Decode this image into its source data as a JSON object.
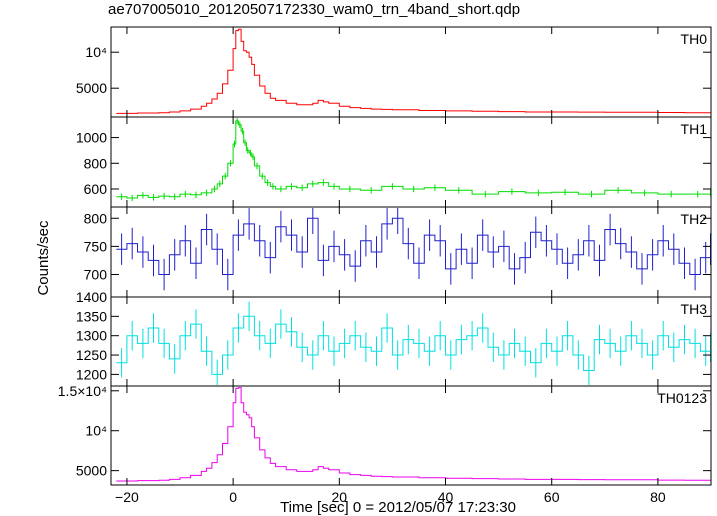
{
  "figure": {
    "title": "ae707005010_20120507172330_wam0_trn_4band_short.qdp",
    "xlabel": "Time [sec] 0 = 2012/05/07 17:23:30",
    "ylabel": "Counts/sec"
  },
  "chart_data": [
    {
      "type": "line",
      "name": "TH0",
      "color": "#ff0000",
      "xlim": [
        -23,
        90
      ],
      "ylim": [
        1000,
        13500
      ],
      "ticks": [
        {
          "v": 5000,
          "label": "5000"
        },
        {
          "v": 10000,
          "label": "10⁴"
        }
      ],
      "x": [
        -22,
        -20,
        -18,
        -16,
        -14,
        -12,
        -10,
        -8,
        -6,
        -5,
        -4,
        -3,
        -2,
        -1,
        0,
        0.5,
        1,
        1.5,
        2,
        2.5,
        3,
        3.5,
        4,
        5,
        6,
        7,
        8,
        10,
        12,
        14,
        15,
        16,
        17,
        18,
        20,
        22,
        24,
        26,
        28,
        30,
        35,
        40,
        45,
        50,
        55,
        60,
        65,
        70,
        75,
        80,
        85,
        90
      ],
      "values": [
        1500,
        1500,
        1550,
        1550,
        1600,
        1700,
        1850,
        2100,
        2500,
        2900,
        3500,
        4300,
        5600,
        7500,
        10500,
        13000,
        13200,
        11500,
        10200,
        10000,
        9300,
        8300,
        6800,
        5300,
        4300,
        3600,
        3300,
        2900,
        2700,
        2700,
        2900,
        3300,
        3100,
        2900,
        2500,
        2300,
        2200,
        2100,
        2050,
        2000,
        1900,
        1850,
        1800,
        1750,
        1700,
        1700,
        1680,
        1650,
        1650,
        1620,
        1600,
        1600
      ]
    },
    {
      "type": "line",
      "name": "TH1",
      "color": "#00dd00",
      "xlim": [
        -23,
        90
      ],
      "ylim": [
        460,
        1160
      ],
      "ticks": [
        {
          "v": 600,
          "label": "600"
        },
        {
          "v": 800,
          "label": "800"
        },
        {
          "v": 1000,
          "label": "1000"
        }
      ],
      "error": 25,
      "x": [
        -22,
        -20,
        -18,
        -16,
        -14,
        -12,
        -10,
        -8,
        -6,
        -4,
        -3,
        -2,
        -1,
        0,
        0.5,
        1,
        1.5,
        2,
        2.5,
        3,
        3.5,
        4,
        5,
        6,
        7,
        8,
        10,
        12,
        14,
        16,
        18,
        20,
        24,
        28,
        32,
        36,
        40,
        45,
        50,
        55,
        60,
        65,
        70,
        75,
        80,
        85,
        90
      ],
      "values": [
        540,
        530,
        550,
        535,
        545,
        540,
        560,
        555,
        570,
        600,
        640,
        700,
        800,
        950,
        1130,
        1100,
        1050,
        960,
        900,
        880,
        850,
        780,
        700,
        650,
        620,
        600,
        620,
        610,
        640,
        650,
        620,
        600,
        590,
        620,
        600,
        610,
        590,
        560,
        580,
        570,
        575,
        560,
        590,
        570,
        560,
        560,
        570
      ]
    },
    {
      "type": "line",
      "name": "TH2",
      "color": "#2020cc",
      "xlim": [
        -23,
        90
      ],
      "ylim": [
        660,
        820
      ],
      "ticks": [
        {
          "v": 700,
          "label": "700"
        },
        {
          "v": 750,
          "label": "750"
        },
        {
          "v": 800,
          "label": "800"
        }
      ],
      "error": 28,
      "x": [
        -22,
        -20,
        -18,
        -16,
        -14,
        -12,
        -10,
        -8,
        -6,
        -4,
        -2,
        0,
        2,
        4,
        6,
        8,
        10,
        12,
        14,
        16,
        18,
        20,
        22,
        24,
        26,
        28,
        30,
        32,
        34,
        36,
        38,
        40,
        42,
        44,
        46,
        48,
        50,
        52,
        54,
        56,
        58,
        60,
        62,
        64,
        66,
        68,
        70,
        72,
        74,
        76,
        78,
        80,
        82,
        84,
        86,
        88,
        90
      ],
      "values": [
        745,
        755,
        740,
        725,
        700,
        735,
        760,
        720,
        780,
        745,
        700,
        770,
        790,
        760,
        730,
        785,
        770,
        740,
        800,
        725,
        750,
        735,
        715,
        760,
        740,
        790,
        800,
        755,
        720,
        770,
        760,
        710,
        745,
        720,
        770,
        740,
        750,
        710,
        730,
        775,
        760,
        745,
        720,
        735,
        760,
        725,
        780,
        755,
        740,
        710,
        735,
        760,
        745,
        720,
        700,
        730,
        745
      ]
    },
    {
      "type": "line",
      "name": "TH3",
      "color": "#00e0e0",
      "xlim": [
        -23,
        90
      ],
      "ylim": [
        1170,
        1400
      ],
      "ticks": [
        {
          "v": 1200,
          "label": "1200"
        },
        {
          "v": 1250,
          "label": "1250"
        },
        {
          "v": 1300,
          "label": "1300"
        },
        {
          "v": 1350,
          "label": "1350"
        },
        {
          "v": 1400,
          "label": "1400"
        }
      ],
      "error": 38,
      "x": [
        -22,
        -20,
        -18,
        -16,
        -14,
        -12,
        -10,
        -8,
        -6,
        -4,
        -2,
        0,
        2,
        4,
        6,
        8,
        10,
        12,
        14,
        16,
        18,
        20,
        22,
        24,
        26,
        28,
        30,
        32,
        34,
        36,
        38,
        40,
        42,
        44,
        46,
        48,
        50,
        52,
        54,
        56,
        58,
        60,
        62,
        64,
        66,
        68,
        70,
        72,
        74,
        76,
        78,
        80,
        82,
        84,
        86,
        88,
        90
      ],
      "values": [
        1230,
        1300,
        1280,
        1320,
        1280,
        1240,
        1300,
        1330,
        1260,
        1200,
        1250,
        1320,
        1350,
        1300,
        1280,
        1330,
        1310,
        1270,
        1250,
        1300,
        1260,
        1280,
        1300,
        1270,
        1260,
        1320,
        1250,
        1290,
        1280,
        1260,
        1300,
        1250,
        1290,
        1300,
        1320,
        1270,
        1250,
        1280,
        1260,
        1230,
        1280,
        1260,
        1300,
        1250,
        1210,
        1290,
        1280,
        1260,
        1300,
        1280,
        1250,
        1300,
        1270,
        1290,
        1280,
        1260,
        1270
      ]
    },
    {
      "type": "line",
      "name": "TH0123",
      "color": "#ee00ee",
      "xlim": [
        -23,
        90
      ],
      "ylim": [
        3200,
        15600
      ],
      "ticks": [
        {
          "v": 5000,
          "label": "5000"
        },
        {
          "v": 10000,
          "label": "10⁴"
        },
        {
          "v": 15000,
          "label": "1.5×10⁴"
        }
      ],
      "x": [
        -22,
        -20,
        -18,
        -16,
        -14,
        -12,
        -10,
        -8,
        -6,
        -5,
        -4,
        -3,
        -2,
        -1,
        0,
        0.5,
        1,
        1.5,
        2,
        2.5,
        3,
        3.5,
        4,
        5,
        6,
        7,
        8,
        10,
        12,
        14,
        15,
        16,
        17,
        18,
        20,
        22,
        24,
        26,
        28,
        30,
        35,
        40,
        45,
        50,
        55,
        60,
        65,
        70,
        75,
        80,
        85,
        90
      ],
      "values": [
        3700,
        3700,
        3750,
        3750,
        3800,
        3900,
        4100,
        4400,
        4900,
        5300,
        6000,
        7000,
        8400,
        10500,
        13500,
        15300,
        15400,
        13500,
        12300,
        12000,
        11600,
        10500,
        9100,
        7600,
        6600,
        5900,
        5500,
        5100,
        4900,
        4900,
        5100,
        5500,
        5300,
        5100,
        4700,
        4500,
        4400,
        4300,
        4250,
        4200,
        4100,
        4050,
        4000,
        3950,
        3900,
        3900,
        3880,
        3850,
        3850,
        3820,
        3800,
        3800
      ]
    }
  ],
  "x_axis": {
    "ticks": [
      {
        "v": -20,
        "label": "−20"
      },
      {
        "v": 0,
        "label": "0"
      },
      {
        "v": 20,
        "label": "20"
      },
      {
        "v": 40,
        "label": "40"
      },
      {
        "v": 60,
        "label": "60"
      },
      {
        "v": 80,
        "label": "80"
      }
    ]
  }
}
